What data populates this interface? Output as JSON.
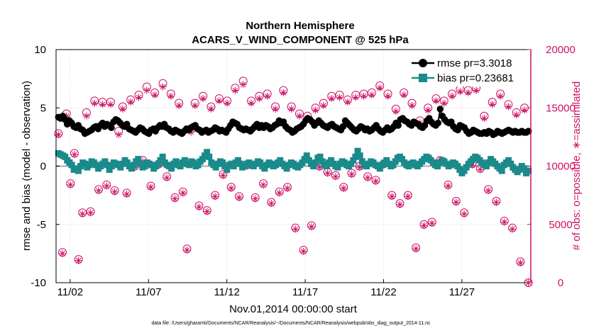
{
  "chart_data": {
    "type": "line",
    "title_line1": "Northern Hemisphere",
    "title_line2": "ACARS_V_WIND_COMPONENT @ 525 hPa",
    "xlabel": "Nov.01,2014 00:00:00 start",
    "ylabel_left": "rmse and bias (model - observation)",
    "ylabel_right": "# of obs: o=possible, ∗=assimilated",
    "footer": "data file: /Users/gharamti/Documents/NCAR/Reanalysis/~/Documents/NCAR/Reanalysis/webpub/obs_diag_output_2014-11.nc",
    "xlim": [
      0.6,
      30.9
    ],
    "ylim_left": [
      -10,
      10
    ],
    "ylim_right": [
      0,
      20000
    ],
    "x_ticks": [
      1.5,
      6.5,
      11.5,
      16.5,
      21.5,
      26.5
    ],
    "x_tick_labels": [
      "11/02",
      "11/07",
      "11/12",
      "11/17",
      "11/22",
      "11/27"
    ],
    "y_ticks_left": [
      10,
      5,
      0,
      -5,
      -10
    ],
    "y_tick_labels_left": [
      "10",
      "5",
      "0",
      "-5",
      "-10"
    ],
    "y_ticks_right": [
      20000,
      15000,
      10000,
      5000,
      0
    ],
    "y_tick_labels_right": [
      "20000",
      "15000",
      "10000",
      "5000",
      "0"
    ],
    "grid": true,
    "legend_position": "top-right",
    "colors": {
      "rmse": "#000000",
      "bias": "#1a8a8a",
      "obs": "#cc1166",
      "zero_line": "#aaaaaa",
      "grid": "#d9d9d9"
    },
    "series": [
      {
        "name": "rmse pr=3.3018",
        "axis": "left",
        "marker": "circle",
        "values": [
          4.2,
          4.1,
          4.3,
          4.0,
          3.6,
          3.9,
          3.7,
          3.4,
          3.3,
          3.5,
          3.2,
          3.1,
          2.8,
          2.9,
          3.0,
          3.1,
          3.3,
          3.4,
          3.2,
          3.5,
          3.7,
          3.4,
          3.6,
          3.5,
          3.3,
          3.8,
          4.0,
          3.9,
          3.7,
          3.5,
          3.4,
          3.6,
          3.2,
          3.1,
          3.0,
          2.9,
          3.1,
          3.3,
          3.2,
          3.0,
          2.9,
          2.8,
          3.1,
          3.2,
          3.0,
          3.3,
          3.5,
          3.4,
          3.6,
          3.3,
          3.2,
          3.0,
          2.9,
          3.1,
          3.0,
          2.9,
          2.8,
          3.0,
          3.2,
          3.1,
          3.3,
          3.4,
          3.5,
          3.2,
          3.1,
          2.9,
          3.0,
          3.1,
          2.9,
          3.0,
          3.1,
          3.3,
          3.2,
          3.0,
          3.1,
          3.0,
          2.9,
          3.2,
          3.5,
          3.8,
          3.7,
          3.6,
          3.3,
          3.2,
          3.1,
          3.2,
          3.1,
          3.0,
          3.2,
          3.4,
          3.6,
          3.3,
          3.5,
          3.3,
          3.5,
          3.4,
          3.2,
          3.3,
          3.5,
          3.6,
          3.9,
          3.7,
          3.8,
          3.4,
          3.2,
          3.1,
          2.9,
          3.0,
          3.2,
          3.3,
          3.4,
          3.6,
          3.9,
          4.1,
          4.0,
          3.8,
          3.5,
          3.7,
          3.9,
          3.7,
          3.5,
          3.4,
          3.3,
          3.5,
          3.6,
          3.4,
          3.3,
          3.2,
          3.1,
          3.4,
          3.9,
          3.7,
          3.5,
          3.3,
          3.1,
          3.0,
          3.2,
          3.4,
          3.3,
          3.1,
          3.2,
          3.0,
          3.1,
          3.3,
          3.5,
          3.2,
          3.0,
          2.9,
          3.1,
          3.3,
          3.1,
          3.2,
          3.4,
          3.7,
          3.5,
          4.0,
          4.1,
          3.9,
          3.8,
          3.6,
          3.5,
          3.8,
          3.7,
          3.6,
          3.4,
          3.3,
          3.5,
          3.9,
          4.1,
          3.8,
          3.6,
          3.5,
          3.7,
          4.9,
          4.3,
          4.0,
          3.8,
          3.7,
          3.8,
          3.4,
          3.2,
          3.1,
          3.5,
          3.4,
          3.3,
          3.0,
          2.8,
          2.9,
          3.1,
          3.0,
          2.9,
          2.8,
          2.8,
          2.9,
          2.8,
          3.0,
          2.9,
          2.7,
          2.8,
          3.0,
          2.9,
          2.8,
          2.9,
          3.0,
          3.1,
          3.0,
          2.9,
          3.0,
          2.9,
          2.9,
          3.0,
          2.9,
          2.9,
          3.0
        ]
      },
      {
        "name": "bias pr=0.23681",
        "axis": "left",
        "marker": "square",
        "values": [
          1.1,
          1.0,
          0.9,
          0.8,
          0.5,
          0.3,
          0.1,
          -0.3,
          -0.2,
          -0.4,
          0.0,
          0.3,
          0.2,
          -0.1,
          0.1,
          0.4,
          0.3,
          0.1,
          -0.2,
          0.0,
          0.2,
          0.4,
          0.1,
          -0.3,
          0.0,
          0.3,
          0.2,
          0.1,
          -0.1,
          0.2,
          0.5,
          0.3,
          0.0,
          -0.2,
          0.1,
          0.4,
          0.6,
          0.2,
          -0.1,
          0.0,
          0.3,
          0.2,
          0.1,
          -0.2,
          0.0,
          0.2,
          0.5,
          0.8,
          0.3,
          0.1,
          0.0,
          -0.2,
          0.2,
          0.4,
          0.1,
          0.0,
          0.3,
          0.5,
          0.2,
          0.1,
          0.4,
          0.3,
          0.0,
          0.1,
          0.4,
          0.6,
          0.9,
          1.2,
          0.8,
          0.3,
          0.1,
          -0.1,
          0.2,
          0.4,
          0.3,
          0.0,
          -0.3,
          0.1,
          0.2,
          0.0,
          0.3,
          0.5,
          0.2,
          -0.1,
          0.0,
          0.2,
          0.3,
          0.1,
          0.0,
          0.2,
          0.4,
          0.3,
          0.0,
          -0.2,
          0.1,
          0.3,
          0.2,
          0.0,
          0.1,
          0.3,
          0.5,
          0.2,
          0.0,
          -0.2,
          0.1,
          0.3,
          0.2,
          0.0,
          -0.1,
          0.1,
          0.3,
          0.6,
          0.9,
          0.5,
          0.2,
          0.0,
          0.3,
          0.7,
          0.8,
          0.4,
          0.1,
          0.0,
          0.3,
          0.5,
          0.2,
          0.0,
          -0.1,
          0.2,
          0.4,
          0.3,
          0.1,
          0.0,
          0.2,
          0.5,
          0.8,
          1.3,
          0.9,
          0.4,
          0.1,
          0.0,
          0.2,
          0.4,
          0.3,
          0.1,
          0.0,
          -0.2,
          0.1,
          0.3,
          0.5,
          0.2,
          0.0,
          0.1,
          0.4,
          0.7,
          0.8,
          0.6,
          0.3,
          0.1,
          0.0,
          0.2,
          0.3,
          0.1,
          0.0,
          0.2,
          0.4,
          0.6,
          0.8,
          0.7,
          0.5,
          0.3,
          0.1,
          0.0,
          0.3,
          0.5,
          0.4,
          0.2,
          0.0,
          0.1,
          0.3,
          0.2,
          0.0,
          -0.3,
          -0.6,
          -0.4,
          -0.1,
          0.2,
          0.4,
          0.6,
          0.8,
          0.7,
          0.5,
          0.3,
          0.1,
          0.0,
          0.3,
          0.6,
          0.4,
          0.2,
          0.0,
          -0.2,
          -0.4,
          0.1,
          0.3,
          0.5,
          0.2,
          -0.1,
          -0.3,
          -0.5,
          -0.3,
          0.0,
          -0.2,
          -0.6,
          -0.4
        ]
      },
      {
        "name": "# of obs possible",
        "axis": "right",
        "marker": "open-circle",
        "values": [
          12800,
          2600,
          14500,
          8500,
          11100,
          2000,
          6000,
          14600,
          6100,
          15600,
          8000,
          15500,
          8400,
          15500,
          7900,
          13000,
          15100,
          7700,
          15700,
          10000,
          16100,
          10500,
          16800,
          8300,
          16300,
          10200,
          17100,
          9100,
          16200,
          7300,
          15400,
          7800,
          2900,
          13200,
          15400,
          6600,
          16000,
          6200,
          15100,
          7500,
          15800,
          9300,
          15600,
          8200,
          16700,
          7400,
          17300,
          10100,
          15600,
          7300,
          16000,
          8500,
          16200,
          6900,
          15100,
          7800,
          16500,
          8200,
          15100,
          4700,
          14500,
          2800,
          14300,
          4900,
          15000,
          10000,
          15400,
          9500,
          16000,
          9200,
          16100,
          8200,
          15700,
          9400,
          16100,
          10000,
          16200,
          9100,
          16300,
          8800,
          16900,
          10200,
          16200,
          7500,
          14900,
          6800,
          16300,
          7500,
          15400,
          3000,
          13900,
          5000,
          15000,
          5200,
          15800,
          10500,
          15600,
          8400,
          16200,
          7000,
          16600,
          6000,
          16500,
          10200,
          16700,
          9800,
          14300,
          8000,
          15500,
          7000,
          16200,
          5300,
          15300,
          4700,
          14600,
          1800,
          15000,
          0
        ]
      },
      {
        "name": "# of obs assimilated",
        "axis": "right",
        "marker": "asterisk",
        "values": [
          12700,
          2500,
          14300,
          8400,
          11000,
          1900,
          5900,
          14300,
          6000,
          15400,
          7900,
          15300,
          8300,
          15300,
          7800,
          12700,
          14900,
          7600,
          15500,
          9900,
          15900,
          10400,
          16500,
          8200,
          16100,
          10100,
          16800,
          9000,
          16000,
          7200,
          15200,
          7700,
          2800,
          12900,
          15200,
          6500,
          15800,
          6100,
          14900,
          7400,
          15600,
          9200,
          15400,
          8100,
          16500,
          7300,
          17000,
          10000,
          15400,
          7200,
          15800,
          8400,
          16000,
          6800,
          14900,
          7700,
          16300,
          8100,
          14900,
          4600,
          14300,
          2700,
          14100,
          4800,
          14800,
          9900,
          15200,
          9400,
          15800,
          9100,
          15900,
          8100,
          15500,
          9300,
          15900,
          9900,
          16000,
          9000,
          16100,
          8700,
          16700,
          10100,
          16000,
          7400,
          14700,
          6700,
          16100,
          7400,
          15200,
          2900,
          13700,
          4900,
          14800,
          5100,
          15600,
          10400,
          15400,
          8300,
          16000,
          6900,
          16400,
          5900,
          16300,
          10100,
          16500,
          9700,
          14100,
          7900,
          15300,
          6900,
          16000,
          5200,
          15100,
          4600,
          14400,
          1700,
          14800,
          0
        ]
      }
    ],
    "legend": [
      {
        "label": "rmse pr=3.3018",
        "series": "rmse"
      },
      {
        "label": "bias pr=0.23681",
        "series": "bias"
      }
    ]
  }
}
